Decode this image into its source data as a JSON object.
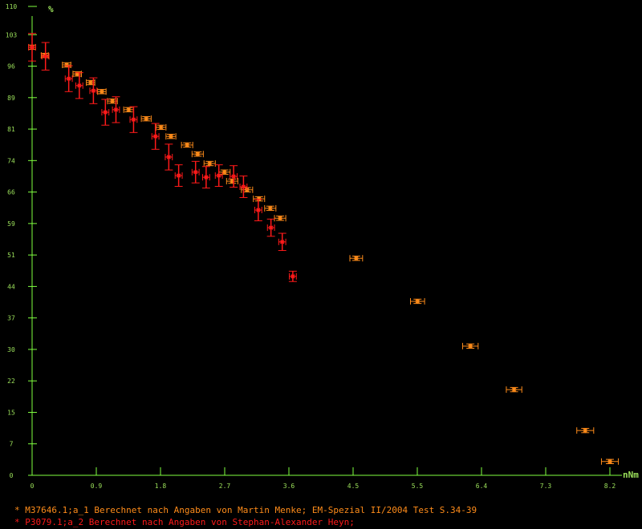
{
  "chart_data": {
    "type": "scatter",
    "xlabel": "nNm",
    "ylabel": "%",
    "xlim": [
      0,
      8.2
    ],
    "ylim": [
      0,
      110
    ],
    "x_ticks": [
      "0",
      "0.9",
      "1.8",
      "2.7",
      "3.6",
      "4.5",
      "5.5",
      "6.4",
      "7.3",
      "8.2"
    ],
    "y_ticks": [
      "0",
      "7",
      "15",
      "22",
      "30",
      "37",
      "44",
      "51",
      "59",
      "66",
      "74",
      "81",
      "89",
      "96",
      "103",
      "110"
    ],
    "grid": false,
    "legend_position": "bottom",
    "colors": {
      "background": "#000000",
      "axis": "#80ff40",
      "series1": "#ff8c1a",
      "series2": "#ff1a1a"
    },
    "series": [
      {
        "name": "M37646.1;a_1 Berechnet nach Angaben von Martin Menke; EM-Spezial II/2004 Test S.34-39",
        "x": [
          0,
          0.18,
          0.49,
          0.64,
          0.83,
          0.99,
          1.14,
          1.37,
          1.62,
          1.83,
          1.97,
          2.2,
          2.35,
          2.52,
          2.73,
          2.84,
          3.05,
          3.22,
          3.38,
          3.52,
          4.6,
          5.47,
          6.22,
          6.84,
          7.85,
          8.2
        ],
        "y": [
          99.4,
          97.5,
          95.3,
          93.2,
          91.2,
          89.1,
          86.9,
          84.9,
          82.8,
          80.8,
          78.7,
          76.7,
          74.6,
          72.4,
          70.4,
          68.3,
          66.3,
          64.2,
          62.0,
          59.7,
          50.4,
          40.4,
          30.0,
          19.9,
          10.4,
          3.2
        ],
        "x_err": [
          0.05,
          0.05,
          0.06,
          0.06,
          0.06,
          0.06,
          0.07,
          0.07,
          0.07,
          0.07,
          0.07,
          0.08,
          0.08,
          0.08,
          0.08,
          0.08,
          0.08,
          0.08,
          0.08,
          0.08,
          0.09,
          0.1,
          0.11,
          0.11,
          0.12,
          0.12
        ],
        "y_err": 0.5
      },
      {
        "name": "P3079.1;a_2 Berechnet nach Angaben von Stephan-Alexander Heyn;",
        "x": [
          0,
          0.19,
          0.52,
          0.67,
          0.87,
          1.04,
          1.19,
          1.44,
          1.75,
          1.94,
          2.08,
          2.32,
          2.47,
          2.65,
          2.86,
          3.0,
          3.21,
          3.39,
          3.55,
          3.7
        ],
        "y": [
          99.4,
          97.3,
          92.1,
          90.5,
          89.3,
          84.3,
          84.9,
          82.6,
          78.7,
          73.9,
          69.6,
          70.4,
          69.2,
          69.6,
          69.4,
          67.0,
          61.6,
          57.5,
          54.2,
          46.2
        ],
        "x_err": 0.05,
        "y_err": [
          3.2,
          3.2,
          3.0,
          3.0,
          3.0,
          3.0,
          3.0,
          3.0,
          3.0,
          3.0,
          2.5,
          2.5,
          2.5,
          2.5,
          2.5,
          2.5,
          2.5,
          2.0,
          2.0,
          1.2
        ]
      }
    ]
  }
}
